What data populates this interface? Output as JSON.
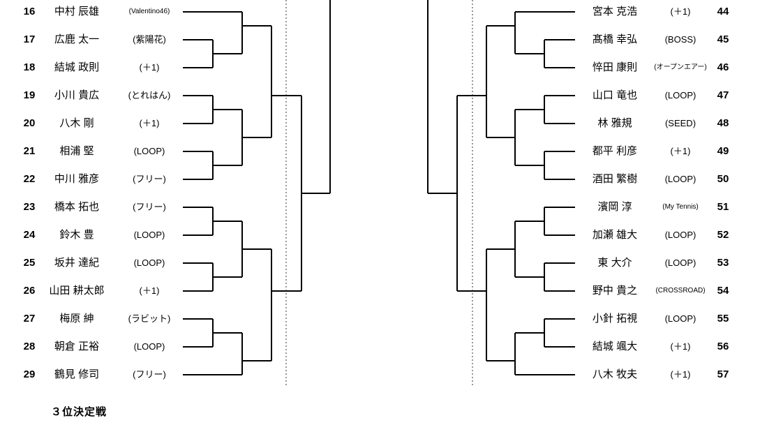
{
  "page": {
    "background": "#ffffff",
    "line_color": "#000000",
    "separator_color": "#333333"
  },
  "footer": {
    "third_place_label": "３位決定戦"
  },
  "left_bracket": {
    "players": [
      {
        "no": "16",
        "name": "中村 辰雄",
        "club": "(Valentino46)"
      },
      {
        "no": "17",
        "name": "広鹿 太一",
        "club": "(紫陽花)"
      },
      {
        "no": "18",
        "name": "結城 政則",
        "club": "(＋1)"
      },
      {
        "no": "19",
        "name": "小川 貴広",
        "club": "(とれはん)"
      },
      {
        "no": "20",
        "name": "八木 剛",
        "club": "(＋1)"
      },
      {
        "no": "21",
        "name": "相浦 堅",
        "club": "(LOOP)"
      },
      {
        "no": "22",
        "name": "中川 雅彦",
        "club": "(フリー)"
      },
      {
        "no": "23",
        "name": "橋本 拓也",
        "club": "(フリー)"
      },
      {
        "no": "24",
        "name": "鈴木 豊",
        "club": "(LOOP)"
      },
      {
        "no": "25",
        "name": "坂井 達紀",
        "club": "(LOOP)"
      },
      {
        "no": "26",
        "name": "山田 耕太郎",
        "club": "(＋1)"
      },
      {
        "no": "27",
        "name": "梅原 紳",
        "club": "(ラビット)"
      },
      {
        "no": "28",
        "name": "朝倉 正裕",
        "club": "(LOOP)"
      },
      {
        "no": "29",
        "name": "鶴見 修司",
        "club": "(フリー)"
      }
    ]
  },
  "right_bracket": {
    "players": [
      {
        "no": "44",
        "name": "宮本 克浩",
        "club": "(＋1)"
      },
      {
        "no": "45",
        "name": "髙橋 幸弘",
        "club": "(BOSS)"
      },
      {
        "no": "46",
        "name": "悴田 康則",
        "club": "(オープンエアー)"
      },
      {
        "no": "47",
        "name": "山口 竜也",
        "club": "(LOOP)"
      },
      {
        "no": "48",
        "name": "林 雅規",
        "club": "(SEED)"
      },
      {
        "no": "49",
        "name": "都平 利彦",
        "club": "(＋1)"
      },
      {
        "no": "50",
        "name": "酒田 繁樹",
        "club": "(LOOP)"
      },
      {
        "no": "51",
        "name": "濱岡 淳",
        "club": "(My Tennis)"
      },
      {
        "no": "52",
        "name": "加瀬 雄大",
        "club": "(LOOP)"
      },
      {
        "no": "53",
        "name": "東 大介",
        "club": "(LOOP)"
      },
      {
        "no": "54",
        "name": "野中 貴之",
        "club": "(CROSSROAD)"
      },
      {
        "no": "55",
        "name": "小針 拓視",
        "club": "(LOOP)"
      },
      {
        "no": "56",
        "name": "結城 颯大",
        "club": "(＋1)"
      },
      {
        "no": "57",
        "name": "八木 牧夫",
        "club": "(＋1)"
      }
    ]
  },
  "bracket_topology": {
    "rows_per_side": 14,
    "round1_pairs": [
      [
        1,
        2
      ],
      [
        3,
        4
      ],
      [
        5,
        6
      ],
      [
        7,
        8
      ],
      [
        9,
        10
      ],
      [
        11,
        12
      ]
    ],
    "byes": [
      0,
      13
    ]
  }
}
